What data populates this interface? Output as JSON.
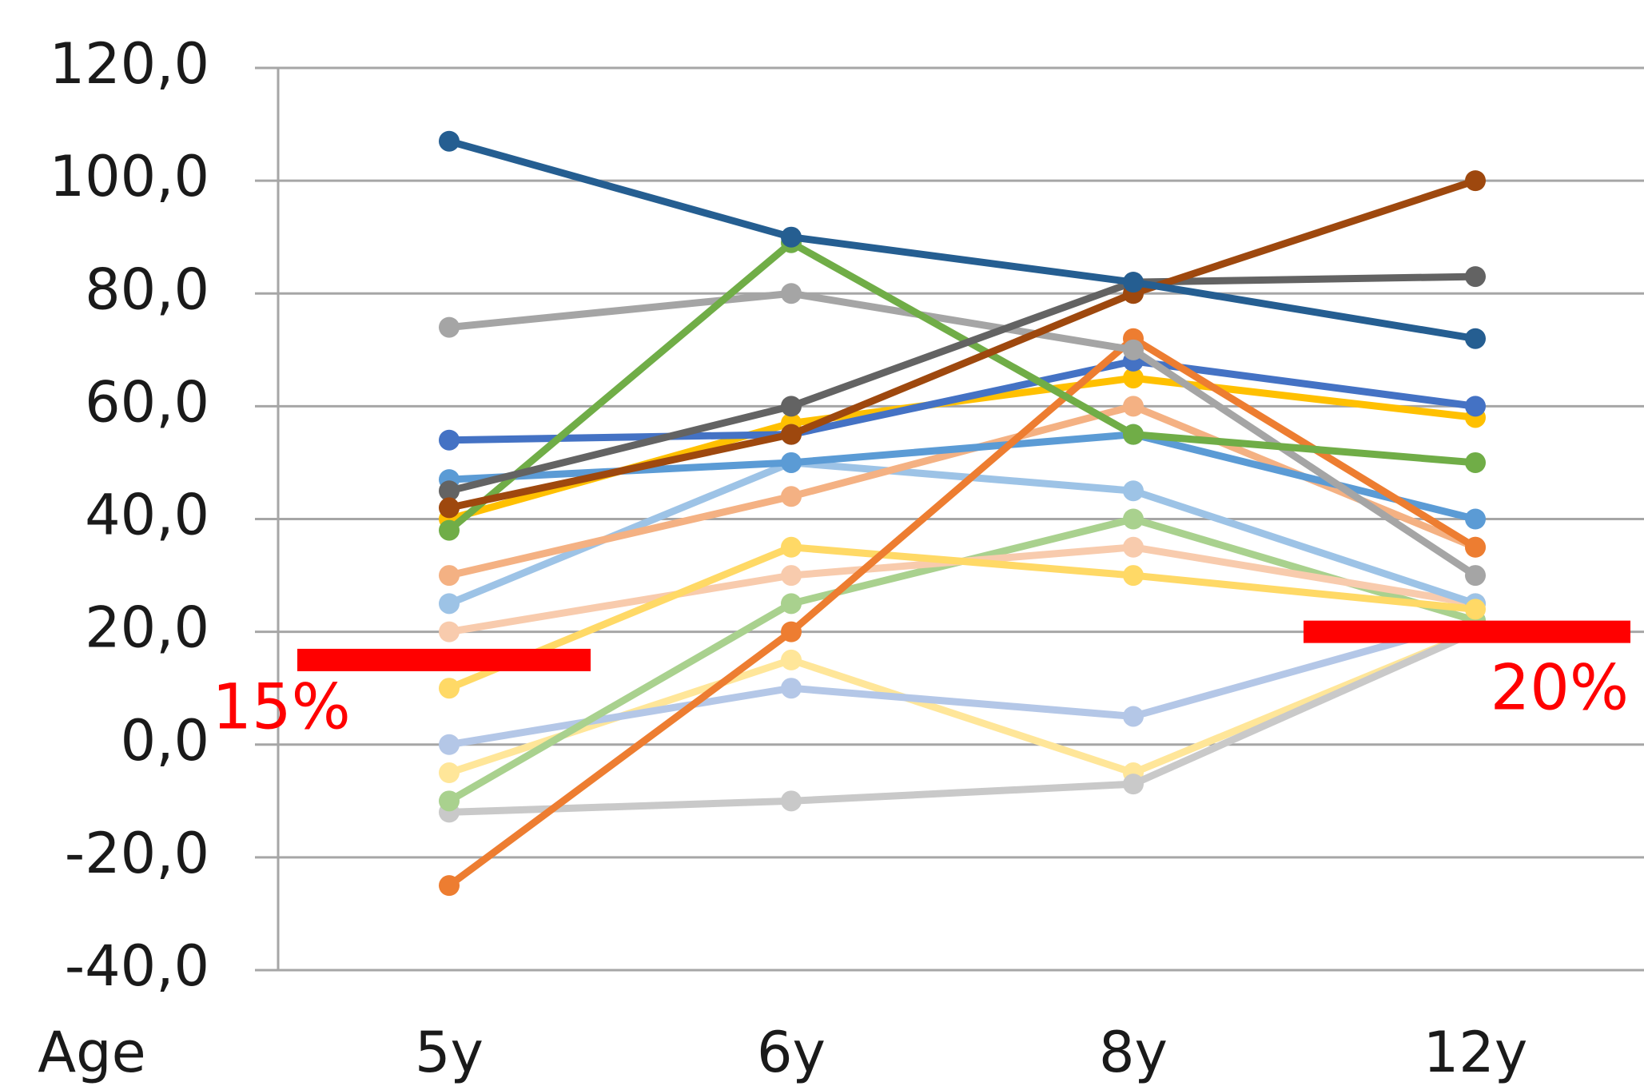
{
  "chart_data": {
    "type": "line",
    "x_label": "Age",
    "categories": [
      "5y",
      "6y",
      "8y",
      "12y"
    ],
    "ylim": [
      -40,
      120
    ],
    "yticks": [
      {
        "value": -40,
        "label": "-40,0"
      },
      {
        "value": -20,
        "label": "-20,0"
      },
      {
        "value": 0,
        "label": "0,0"
      },
      {
        "value": 20,
        "label": "20,0"
      },
      {
        "value": 40,
        "label": "40,0"
      },
      {
        "value": 60,
        "label": "60,0"
      },
      {
        "value": 80,
        "label": "80,0"
      },
      {
        "value": 100,
        "label": "100,0"
      },
      {
        "value": 120,
        "label": "120,0"
      }
    ],
    "grid": true,
    "annotations": [
      {
        "text": "15%",
        "value": 15,
        "color": "#ff0000"
      },
      {
        "text": "20%",
        "value": 20,
        "color": "#ff0000"
      }
    ],
    "series": [
      {
        "color": "#ffe699",
        "values": [
          -5,
          15,
          -5,
          20
        ]
      },
      {
        "color": "#b4c7e7",
        "values": [
          0,
          10,
          5,
          22
        ]
      },
      {
        "color": "#c9c9c9",
        "values": [
          -12,
          -10,
          -7,
          20
        ]
      },
      {
        "color": "#a9d18e",
        "values": [
          -10,
          25,
          40,
          22
        ]
      },
      {
        "color": "#f8cbad",
        "values": [
          20,
          30,
          35,
          25
        ]
      },
      {
        "color": "#9dc3e6",
        "values": [
          25,
          50,
          45,
          25
        ]
      },
      {
        "color": "#ffd966",
        "values": [
          10,
          35,
          30,
          24
        ]
      },
      {
        "color": "#f4b183",
        "values": [
          30,
          44,
          60,
          35
        ]
      },
      {
        "color": "#5b9bd5",
        "values": [
          47,
          50,
          55,
          40
        ]
      },
      {
        "color": "#ffc000",
        "values": [
          40,
          57,
          65,
          58
        ]
      },
      {
        "color": "#4472c4",
        "values": [
          54,
          55,
          68,
          60
        ]
      },
      {
        "color": "#ed7d31",
        "values": [
          -25,
          20,
          72,
          35
        ]
      },
      {
        "color": "#a5a5a5",
        "values": [
          74,
          80,
          70,
          30
        ]
      },
      {
        "color": "#70ad47",
        "values": [
          38,
          89,
          55,
          50
        ]
      },
      {
        "color": "#636363",
        "values": [
          45,
          60,
          82,
          83
        ]
      },
      {
        "color": "#9e480e",
        "values": [
          42,
          55,
          80,
          100
        ]
      },
      {
        "color": "#255e91",
        "values": [
          107,
          90,
          82,
          72
        ]
      }
    ]
  }
}
